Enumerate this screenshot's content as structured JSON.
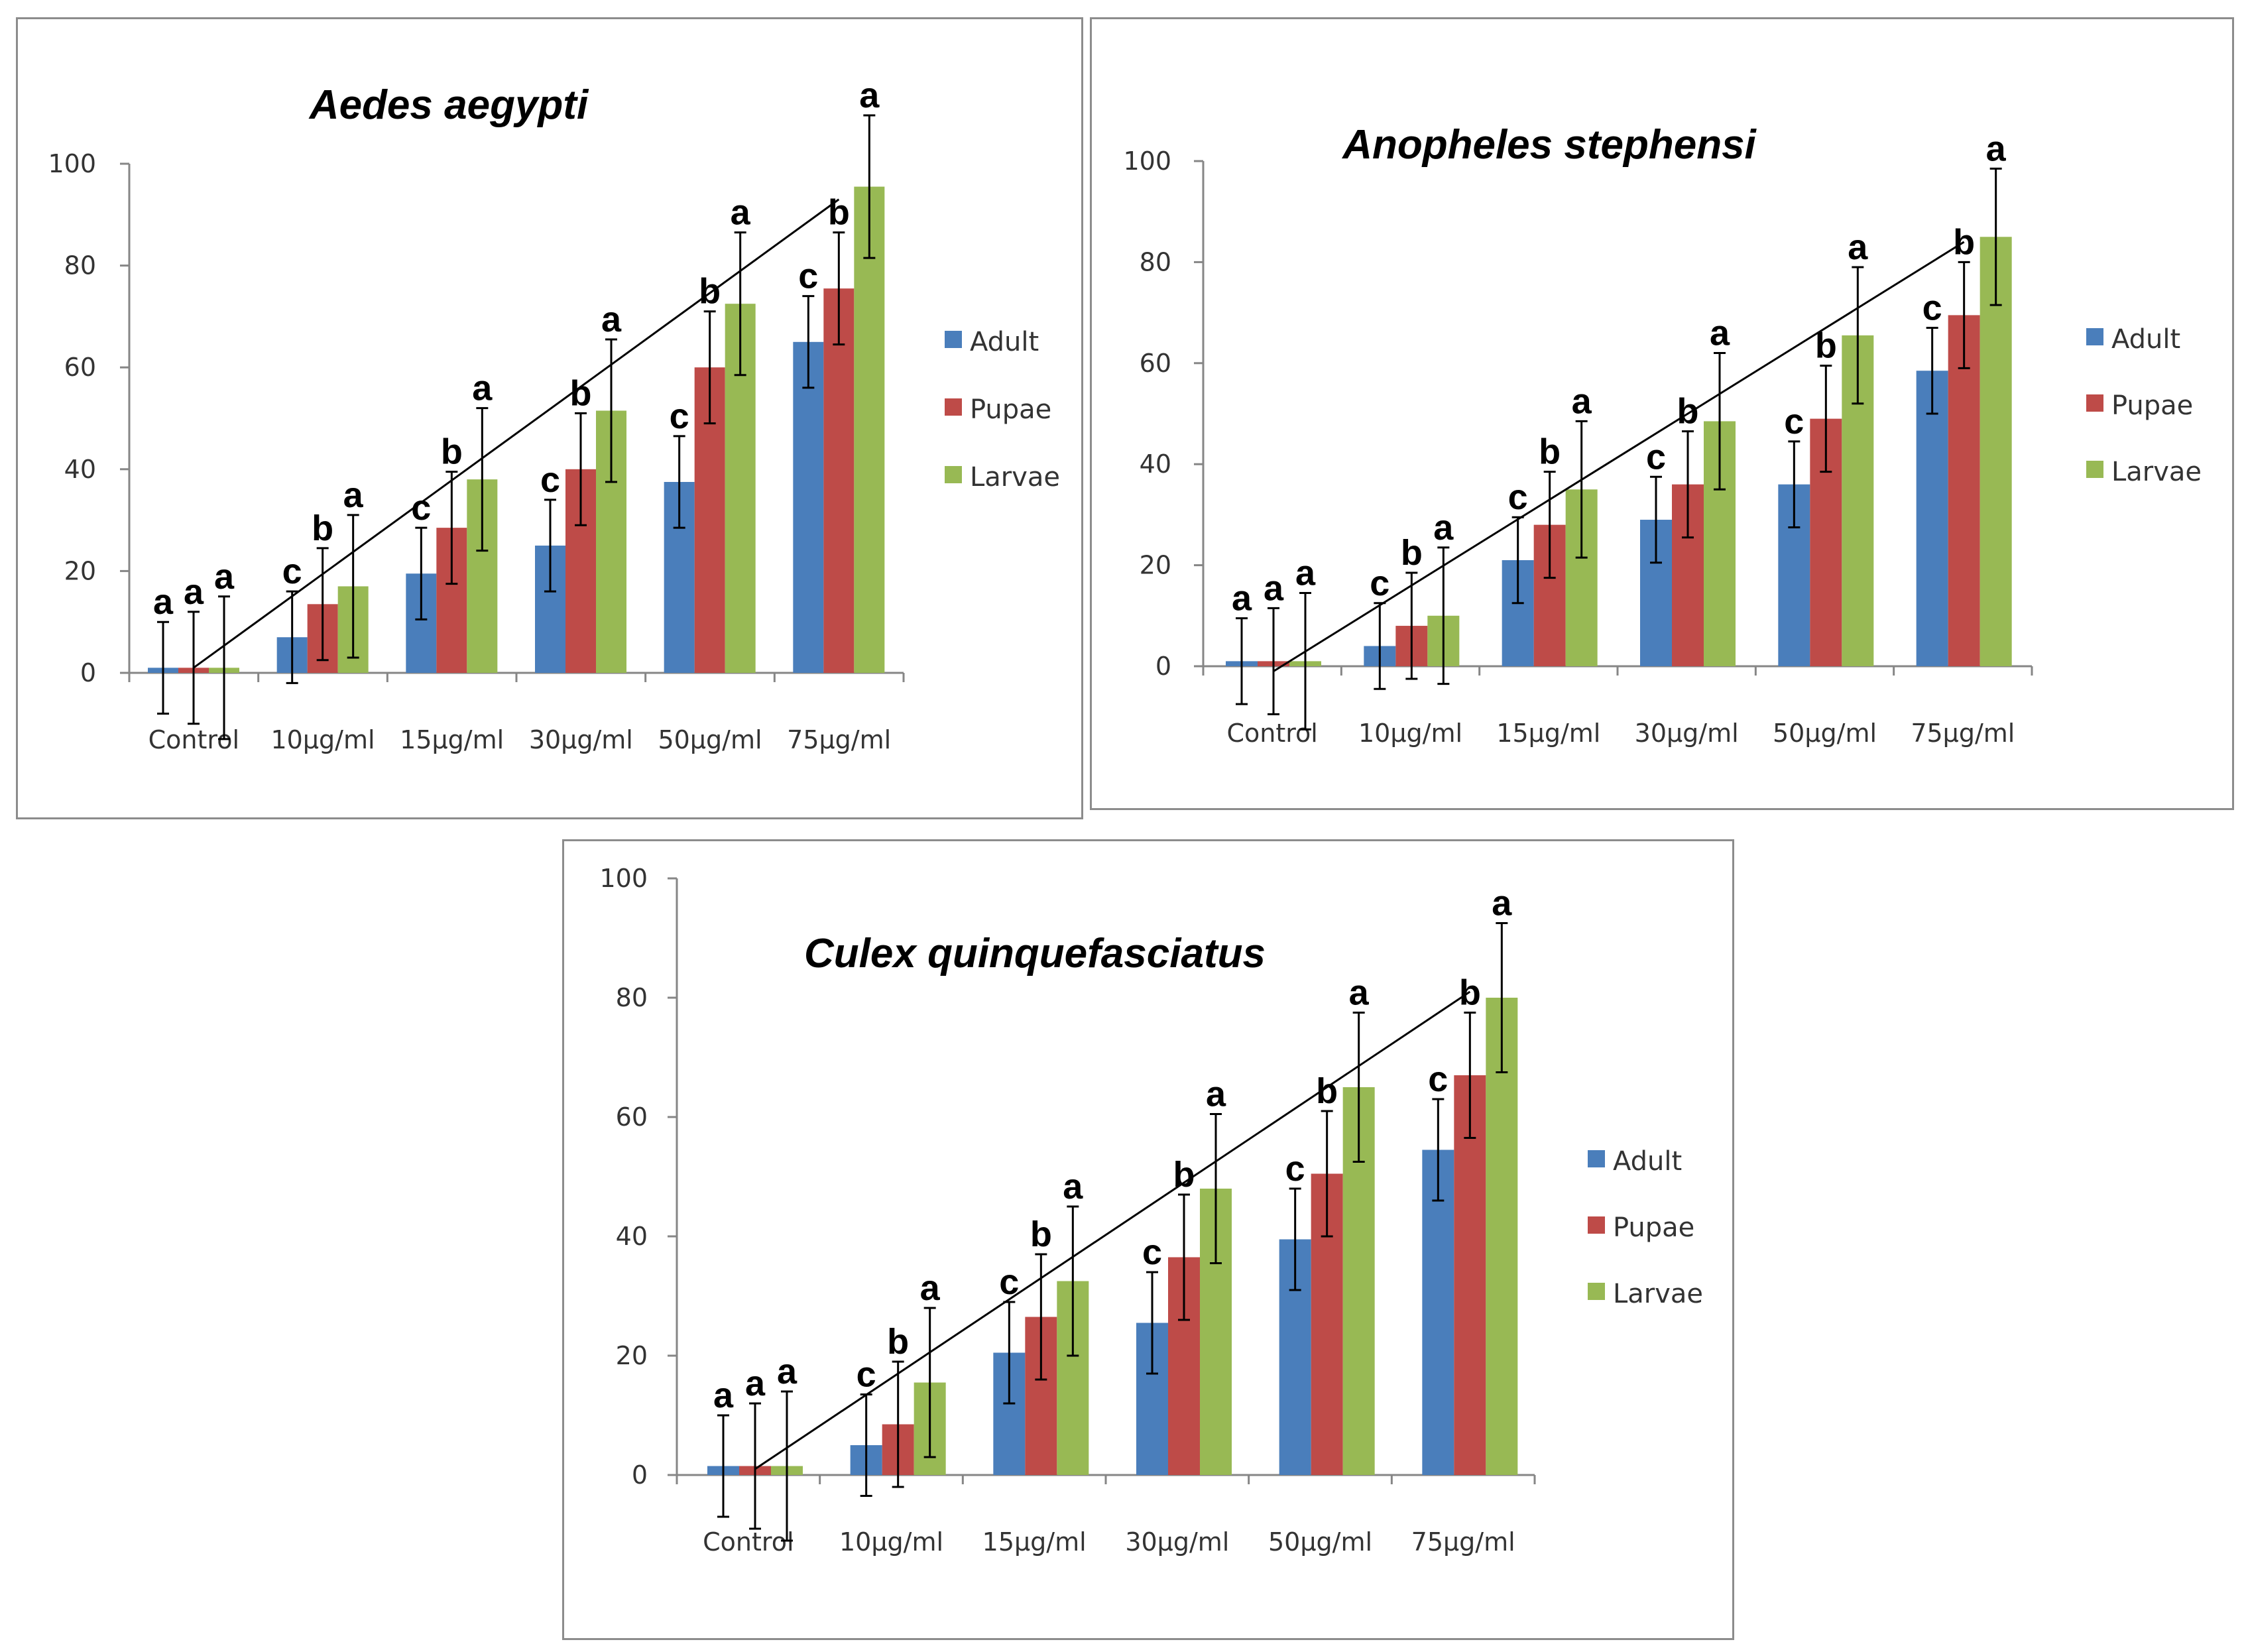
{
  "chart_data": [
    {
      "type": "bar",
      "title": "Aedes aegypti",
      "categories": [
        "Control",
        "10µg/ml",
        "15µg/ml",
        "30µg/ml",
        "50µg/ml",
        "75µg/ml"
      ],
      "ylim": [
        0,
        100
      ],
      "yticks": [
        0,
        20,
        40,
        60,
        80,
        100
      ],
      "legend": "right",
      "series": [
        {
          "name": "Adult",
          "color": "#4a7ebb",
          "values": [
            1,
            7,
            19.5,
            25,
            37.5,
            65
          ],
          "error": [
            9,
            9,
            9,
            9,
            9,
            9
          ],
          "labels": [
            "a",
            "c",
            "c",
            "c",
            "c",
            "c"
          ]
        },
        {
          "name": "Pupae",
          "color": "#be4b48",
          "values": [
            1,
            13.5,
            28.5,
            40,
            60,
            75.5
          ],
          "error": [
            11,
            11,
            11,
            11,
            11,
            11
          ],
          "labels": [
            "a",
            "b",
            "b",
            "b",
            "b",
            "b"
          ]
        },
        {
          "name": "Larvae",
          "color": "#98b954",
          "values": [
            1,
            17,
            38,
            51.5,
            72.5,
            95.5
          ],
          "error": [
            14,
            14,
            14,
            14,
            14,
            14
          ],
          "labels": [
            "a",
            "a",
            "a",
            "a",
            "a",
            "a"
          ]
        }
      ],
      "trendline": {
        "from": {
          "category": 0,
          "series": 1,
          "y": 1
        },
        "to": {
          "category": 5,
          "series": 1,
          "y": 93
        }
      }
    },
    {
      "type": "bar",
      "title": "Anopheles stephensi",
      "categories": [
        "Control",
        "10µg/ml",
        "15µg/ml",
        "30µg/ml",
        "50µg/ml",
        "75µg/ml"
      ],
      "ylim": [
        0,
        100
      ],
      "yticks": [
        0,
        20,
        40,
        60,
        80,
        100
      ],
      "legend": "right",
      "series": [
        {
          "name": "Adult",
          "color": "#4a7ebb",
          "values": [
            1,
            4,
            21,
            29,
            36,
            58.5
          ],
          "error": [
            8.5,
            8.5,
            8.5,
            8.5,
            8.5,
            8.5
          ],
          "labels": [
            "a",
            "c",
            "c",
            "c",
            "c",
            "c"
          ]
        },
        {
          "name": "Pupae",
          "color": "#be4b48",
          "values": [
            1,
            8,
            28,
            36,
            49,
            69.5
          ],
          "error": [
            10.5,
            10.5,
            10.5,
            10.5,
            10.5,
            10.5
          ],
          "labels": [
            "a",
            "b",
            "b",
            "b",
            "b",
            "b"
          ]
        },
        {
          "name": "Larvae",
          "color": "#98b954",
          "values": [
            1,
            10,
            35,
            48.5,
            65.5,
            85
          ],
          "error": [
            13.5,
            13.5,
            13.5,
            13.5,
            13.5,
            13.5
          ],
          "labels": [
            "a",
            "a",
            "a",
            "a",
            "a",
            "a"
          ]
        }
      ],
      "trendline": {
        "from": {
          "category": 0,
          "series": 1,
          "y": -1
        },
        "to": {
          "category": 5,
          "series": 1,
          "y": 84
        }
      }
    },
    {
      "type": "bar",
      "title": "Culex quinquefasciatus",
      "categories": [
        "Control",
        "10µg/ml",
        "15µg/ml",
        "30µg/ml",
        "50µg/ml",
        "75µg/ml"
      ],
      "ylim": [
        0,
        100
      ],
      "yticks": [
        0,
        20,
        40,
        60,
        80,
        100
      ],
      "legend": "right",
      "series": [
        {
          "name": "Adult",
          "color": "#4a7ebb",
          "values": [
            1.5,
            5,
            20.5,
            25.5,
            39.5,
            54.5
          ],
          "error": [
            8.5,
            8.5,
            8.5,
            8.5,
            8.5,
            8.5
          ],
          "labels": [
            "a",
            "c",
            "c",
            "c",
            "c",
            "c"
          ]
        },
        {
          "name": "Pupae",
          "color": "#be4b48",
          "values": [
            1.5,
            8.5,
            26.5,
            36.5,
            50.5,
            67
          ],
          "error": [
            10.5,
            10.5,
            10.5,
            10.5,
            10.5,
            10.5
          ],
          "labels": [
            "a",
            "b",
            "b",
            "b",
            "b",
            "b"
          ]
        },
        {
          "name": "Larvae",
          "color": "#98b954",
          "values": [
            1.5,
            15.5,
            32.5,
            48,
            65,
            80
          ],
          "error": [
            12.5,
            12.5,
            12.5,
            12.5,
            12.5,
            12.5
          ],
          "labels": [
            "a",
            "a",
            "a",
            "a",
            "a",
            "a"
          ]
        }
      ],
      "trendline": {
        "from": {
          "category": 0,
          "series": 1,
          "y": 1
        },
        "to": {
          "category": 5,
          "series": 1,
          "y": 81
        }
      }
    }
  ]
}
